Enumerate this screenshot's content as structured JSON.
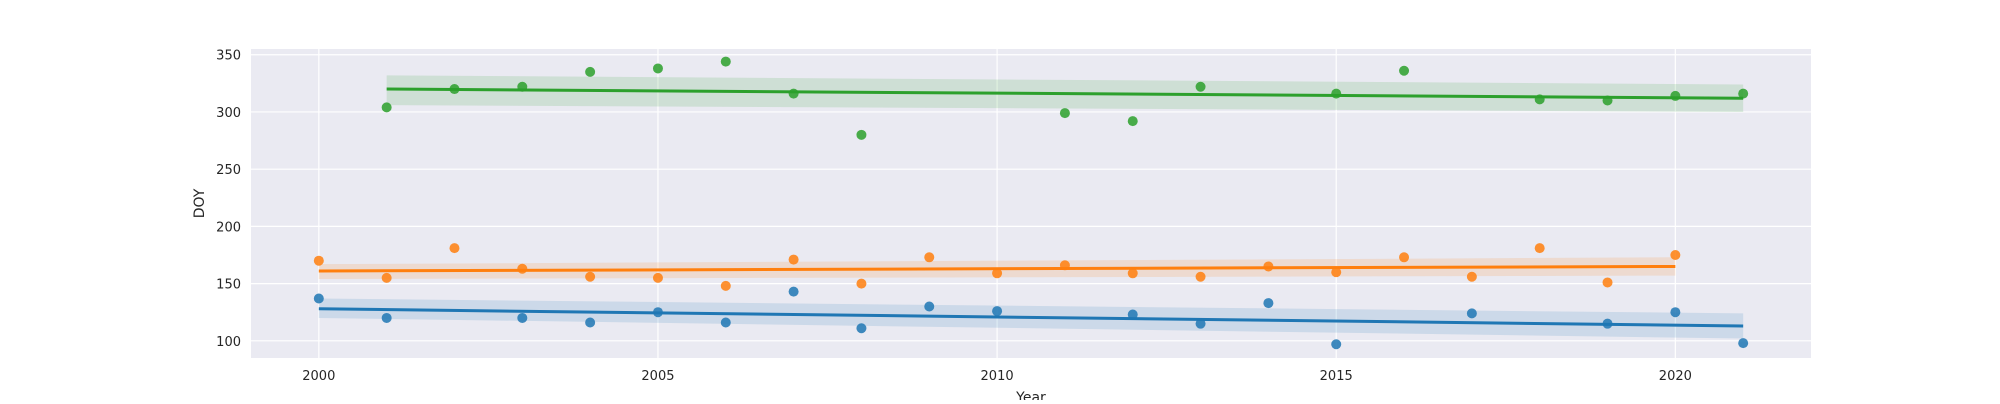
{
  "chart_data": {
    "type": "scatter",
    "title": "",
    "xlabel": "Year",
    "ylabel": "DOY",
    "xlim": [
      1999,
      2022
    ],
    "ylim": [
      85,
      355
    ],
    "xticks": [
      2000,
      2005,
      2010,
      2015,
      2020
    ],
    "yticks": [
      100,
      150,
      200,
      250,
      300,
      350
    ],
    "grid": true,
    "legend": "none",
    "series": [
      {
        "color": "#1f77b4",
        "points": [
          {
            "x": 2000,
            "y": 137
          },
          {
            "x": 2001,
            "y": 120
          },
          {
            "x": 2003,
            "y": 120
          },
          {
            "x": 2004,
            "y": 116
          },
          {
            "x": 2005,
            "y": 125
          },
          {
            "x": 2006,
            "y": 116
          },
          {
            "x": 2007,
            "y": 143
          },
          {
            "x": 2008,
            "y": 111
          },
          {
            "x": 2009,
            "y": 130
          },
          {
            "x": 2010,
            "y": 126
          },
          {
            "x": 2012,
            "y": 123
          },
          {
            "x": 2013,
            "y": 115
          },
          {
            "x": 2014,
            "y": 133
          },
          {
            "x": 2015,
            "y": 97
          },
          {
            "x": 2017,
            "y": 124
          },
          {
            "x": 2019,
            "y": 115
          },
          {
            "x": 2020,
            "y": 125
          },
          {
            "x": 2021,
            "y": 98
          }
        ],
        "fit": {
          "x": [
            2000,
            2021
          ],
          "y": [
            128,
            113
          ]
        },
        "ci_upper": [
          137,
          124
        ],
        "ci_lower": [
          120,
          102
        ]
      },
      {
        "color": "#ff7f0e",
        "points": [
          {
            "x": 2000,
            "y": 170
          },
          {
            "x": 2001,
            "y": 155
          },
          {
            "x": 2002,
            "y": 181
          },
          {
            "x": 2003,
            "y": 163
          },
          {
            "x": 2004,
            "y": 156
          },
          {
            "x": 2005,
            "y": 155
          },
          {
            "x": 2006,
            "y": 148
          },
          {
            "x": 2007,
            "y": 171
          },
          {
            "x": 2008,
            "y": 150
          },
          {
            "x": 2009,
            "y": 173
          },
          {
            "x": 2010,
            "y": 159
          },
          {
            "x": 2011,
            "y": 166
          },
          {
            "x": 2012,
            "y": 159
          },
          {
            "x": 2013,
            "y": 156
          },
          {
            "x": 2014,
            "y": 165
          },
          {
            "x": 2015,
            "y": 160
          },
          {
            "x": 2016,
            "y": 173
          },
          {
            "x": 2017,
            "y": 156
          },
          {
            "x": 2018,
            "y": 181
          },
          {
            "x": 2019,
            "y": 151
          },
          {
            "x": 2020,
            "y": 175
          }
        ],
        "fit": {
          "x": [
            2000,
            2020
          ],
          "y": [
            161,
            165
          ]
        },
        "ci_upper": [
          167,
          173
        ],
        "ci_lower": [
          154,
          157
        ]
      },
      {
        "color": "#2ca02c",
        "points": [
          {
            "x": 2001,
            "y": 304
          },
          {
            "x": 2002,
            "y": 320
          },
          {
            "x": 2003,
            "y": 322
          },
          {
            "x": 2004,
            "y": 335
          },
          {
            "x": 2005,
            "y": 338
          },
          {
            "x": 2006,
            "y": 344
          },
          {
            "x": 2007,
            "y": 316
          },
          {
            "x": 2008,
            "y": 280
          },
          {
            "x": 2011,
            "y": 299
          },
          {
            "x": 2012,
            "y": 292
          },
          {
            "x": 2013,
            "y": 322
          },
          {
            "x": 2015,
            "y": 316
          },
          {
            "x": 2016,
            "y": 336
          },
          {
            "x": 2018,
            "y": 311
          },
          {
            "x": 2019,
            "y": 310
          },
          {
            "x": 2020,
            "y": 314
          },
          {
            "x": 2021,
            "y": 316
          }
        ],
        "fit": {
          "x": [
            2001,
            2021
          ],
          "y": [
            320,
            312
          ]
        },
        "ci_upper": [
          332,
          324
        ],
        "ci_lower": [
          306,
          300
        ]
      }
    ]
  }
}
